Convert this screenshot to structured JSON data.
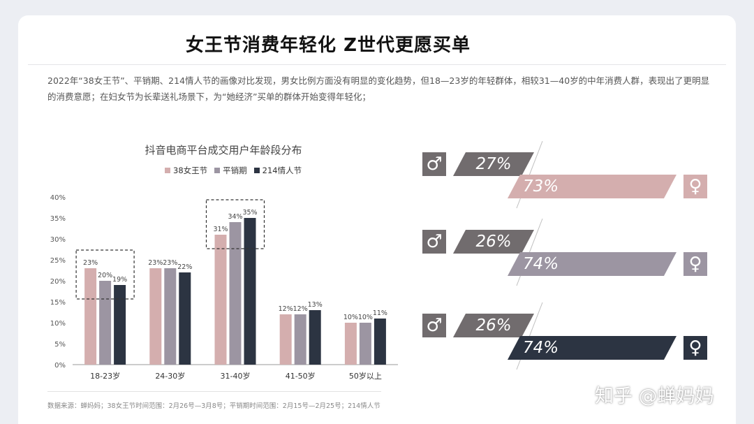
{
  "title": "女王节消费年轻化  Z世代更愿买单",
  "description": "2022年“38女王节”、平销期、214情人节的画像对比发现，男女比例方面没有明显的变化趋势，但18—23岁的年轻群体，相较31—40岁的中年消费人群，表现出了更明显的消费意愿；在妇女节为长辈送礼场景下，为“她经济”买单的群体开始变得年轻化；",
  "source": "数据来源：蝉妈妈；38女王节时间范围：2月26号—3月8号；平销期时间范围：2月15号—2月25号；214情人节",
  "watermark": "知乎 @蝉妈妈",
  "chart_data": [
    {
      "type": "bar",
      "title": "抖音电商平台成交用户年龄段分布",
      "categories": [
        "18-23岁",
        "24-30岁",
        "31-40岁",
        "41-50岁",
        "50岁以上"
      ],
      "series": [
        {
          "name": "38女王节",
          "color": "#d4aeae",
          "values": [
            23,
            23,
            31,
            12,
            10
          ]
        },
        {
          "name": "平销期",
          "color": "#9c95a2",
          "values": [
            20,
            23,
            34,
            12,
            10
          ]
        },
        {
          "name": "214情人节",
          "color": "#2c3442",
          "values": [
            19,
            22,
            35,
            13,
            11
          ]
        }
      ],
      "ylim": [
        0,
        40
      ],
      "yticks": [
        "0%",
        "5%",
        "10%",
        "15%",
        "20%",
        "25%",
        "30%",
        "35%",
        "40%"
      ],
      "highlighted_categories": [
        "18-23岁",
        "31-40岁"
      ],
      "grid": false,
      "legend": "top"
    },
    {
      "type": "bar",
      "subtype": "gender-split",
      "rows": [
        {
          "male": "27%",
          "female": "73%",
          "male_value": 27,
          "female_value": 73,
          "female_color": "#d4aeae"
        },
        {
          "male": "26%",
          "female": "74%",
          "male_value": 26,
          "female_value": 74,
          "female_color": "#9c95a2"
        },
        {
          "male": "26%",
          "female": "74%",
          "male_value": 26,
          "female_value": 74,
          "female_color": "#2c3442"
        }
      ],
      "male_color": "#716c6e",
      "male_icon": "male-symbol-icon",
      "female_icon": "female-symbol-icon"
    }
  ]
}
